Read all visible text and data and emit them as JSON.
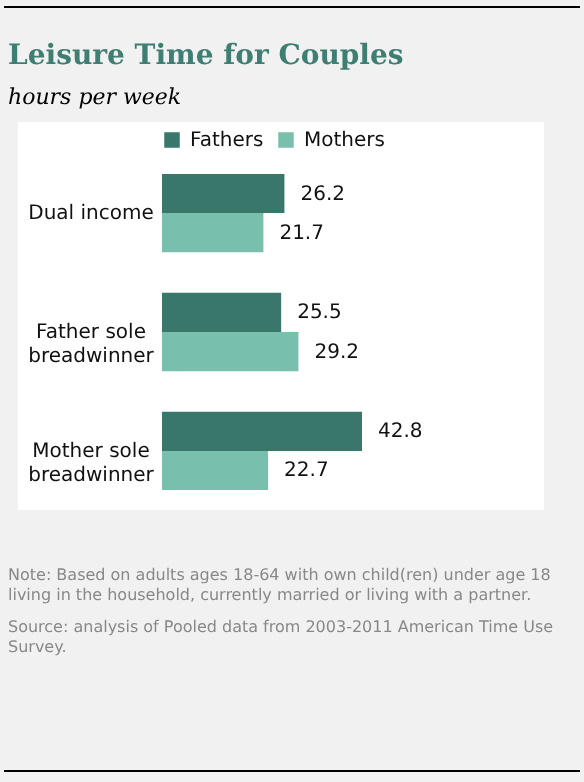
{
  "chart_data": {
    "type": "bar",
    "orientation": "horizontal",
    "title": "Leisure Time for Couples",
    "subtitle": "hours per week",
    "categories": [
      "Dual income",
      "Father sole breadwinner",
      "Mother sole breadwinner"
    ],
    "series": [
      {
        "name": "Fathers",
        "color": "#38776a",
        "values": [
          26.2,
          25.5,
          42.8
        ]
      },
      {
        "name": "Mothers",
        "color": "#78bfae",
        "values": [
          21.7,
          29.2,
          22.7
        ]
      }
    ],
    "data_labels": true,
    "legend": "top",
    "tick_labels": "y",
    "annotations": [
      "Note: Based on adults ages 18-64 with own child(ren) under age 18 living in the household, currently married or living with a partner.",
      "Source: analysis of Pooled data from 2003-2011 American Time Use Survey."
    ]
  }
}
